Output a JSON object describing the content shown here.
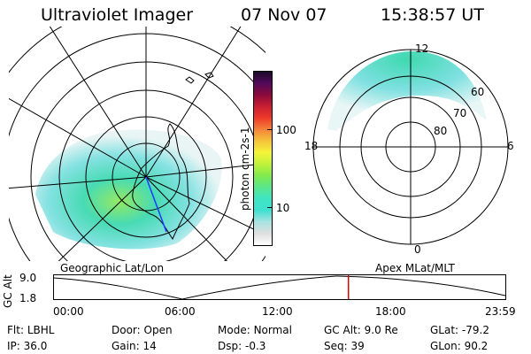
{
  "header": {
    "title": "Ultraviolet Imager",
    "date": "07 Nov 07",
    "time": "15:38:57 UT"
  },
  "geo_panel": {
    "caption": "Geographic Lat/Lon"
  },
  "apex_panel": {
    "caption": "Apex MLat/MLT",
    "mlt_labels": {
      "top": "12",
      "left": "18",
      "right": "6",
      "bottom": "0"
    },
    "lat_labels": [
      "60",
      "70",
      "80"
    ]
  },
  "colorbar": {
    "label": "photon cm-2s-1",
    "ticks": [
      "100",
      "10"
    ],
    "colors": [
      "#ffffff",
      "#dfdfdf",
      "#a9e3e3",
      "#40e0d0",
      "#3ee5c4",
      "#5ae68c",
      "#7fea4e",
      "#bff23a",
      "#f5f53a",
      "#f5c33a",
      "#f5843a",
      "#ee3a2a",
      "#c81e32",
      "#8b0a3c",
      "#52095a",
      "#1a0a2a"
    ]
  },
  "altitude_plot": {
    "ylabel": "GC Alt",
    "y_ticks": [
      "9.0",
      "1.8"
    ],
    "x_ticks": [
      "00:00",
      "06:00",
      "12:00",
      "18:00",
      "23:59"
    ],
    "current_time_fraction": 0.6521,
    "marker_color": "#e00000"
  },
  "info": {
    "row1": [
      {
        "label": "Flt:",
        "value": "LBHL"
      },
      {
        "label": "Door:",
        "value": "Open"
      },
      {
        "label": "Mode:",
        "value": "Normal"
      },
      {
        "label": "GC Alt:",
        "value": "9.0 Re"
      },
      {
        "label": "GLat:",
        "value": "-79.2"
      }
    ],
    "row2": [
      {
        "label": "IP:",
        "value": "36.0"
      },
      {
        "label": "Gain:",
        "value": "14"
      },
      {
        "label": "Dsp:",
        "value": "-0.3"
      },
      {
        "label": "Seq:",
        "value": "39"
      },
      {
        "label": "GLon:",
        "value": "90.2"
      }
    ]
  }
}
